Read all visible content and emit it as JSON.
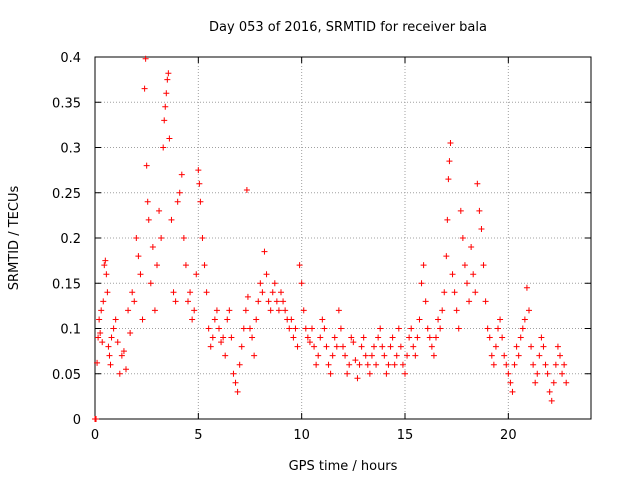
{
  "chart_data": {
    "type": "scatter",
    "title": "Day 053 of 2016, SRMTID for receiver bala",
    "xlabel": "GPS time / hours",
    "ylabel": "SRMTID / TECUs",
    "xlim": [
      0,
      24
    ],
    "ylim": [
      0,
      0.4
    ],
    "x_ticks": [
      0,
      5,
      10,
      15,
      20
    ],
    "y_ticks": [
      0,
      0.05,
      0.1,
      0.15,
      0.2,
      0.25,
      0.3,
      0.35,
      0.4
    ],
    "grid": true,
    "marker": "+",
    "colors": {
      "points": "#ff0000",
      "axes": "#000000",
      "grid": "#a0a0a0"
    },
    "series": [
      {
        "name": "SRMTID",
        "points": [
          [
            0.0,
            0.0
          ],
          [
            0.05,
            0.0
          ],
          [
            0.1,
            0.062
          ],
          [
            0.15,
            0.09
          ],
          [
            0.2,
            0.11
          ],
          [
            0.25,
            0.095
          ],
          [
            0.3,
            0.12
          ],
          [
            0.35,
            0.085
          ],
          [
            0.4,
            0.13
          ],
          [
            0.45,
            0.17
          ],
          [
            0.5,
            0.175
          ],
          [
            0.55,
            0.16
          ],
          [
            0.6,
            0.14
          ],
          [
            0.65,
            0.08
          ],
          [
            0.7,
            0.07
          ],
          [
            0.75,
            0.06
          ],
          [
            0.8,
            0.09
          ],
          [
            0.9,
            0.1
          ],
          [
            1.0,
            0.11
          ],
          [
            1.1,
            0.085
          ],
          [
            1.2,
            0.05
          ],
          [
            1.3,
            0.07
          ],
          [
            1.4,
            0.075
          ],
          [
            1.5,
            0.055
          ],
          [
            1.6,
            0.12
          ],
          [
            1.7,
            0.095
          ],
          [
            1.8,
            0.14
          ],
          [
            1.9,
            0.13
          ],
          [
            2.0,
            0.2
          ],
          [
            2.1,
            0.18
          ],
          [
            2.2,
            0.16
          ],
          [
            2.3,
            0.11
          ],
          [
            2.4,
            0.365
          ],
          [
            2.45,
            0.398
          ],
          [
            2.5,
            0.28
          ],
          [
            2.55,
            0.24
          ],
          [
            2.6,
            0.22
          ],
          [
            2.7,
            0.15
          ],
          [
            2.8,
            0.19
          ],
          [
            2.9,
            0.12
          ],
          [
            3.0,
            0.17
          ],
          [
            3.1,
            0.23
          ],
          [
            3.2,
            0.2
          ],
          [
            3.3,
            0.3
          ],
          [
            3.35,
            0.33
          ],
          [
            3.4,
            0.345
          ],
          [
            3.45,
            0.36
          ],
          [
            3.5,
            0.375
          ],
          [
            3.55,
            0.382
          ],
          [
            3.6,
            0.31
          ],
          [
            3.7,
            0.22
          ],
          [
            3.8,
            0.14
          ],
          [
            3.9,
            0.13
          ],
          [
            4.0,
            0.24
          ],
          [
            4.1,
            0.25
          ],
          [
            4.2,
            0.27
          ],
          [
            4.3,
            0.2
          ],
          [
            4.4,
            0.17
          ],
          [
            4.5,
            0.13
          ],
          [
            4.6,
            0.14
          ],
          [
            4.7,
            0.11
          ],
          [
            4.8,
            0.12
          ],
          [
            4.9,
            0.16
          ],
          [
            5.0,
            0.275
          ],
          [
            5.05,
            0.26
          ],
          [
            5.1,
            0.24
          ],
          [
            5.2,
            0.2
          ],
          [
            5.3,
            0.17
          ],
          [
            5.4,
            0.14
          ],
          [
            5.5,
            0.1
          ],
          [
            5.6,
            0.08
          ],
          [
            5.7,
            0.09
          ],
          [
            5.8,
            0.11
          ],
          [
            5.9,
            0.12
          ],
          [
            6.0,
            0.1
          ],
          [
            6.1,
            0.085
          ],
          [
            6.2,
            0.09
          ],
          [
            6.3,
            0.07
          ],
          [
            6.4,
            0.11
          ],
          [
            6.5,
            0.12
          ],
          [
            6.6,
            0.09
          ],
          [
            6.7,
            0.05
          ],
          [
            6.8,
            0.04
          ],
          [
            6.9,
            0.03
          ],
          [
            7.0,
            0.06
          ],
          [
            7.1,
            0.08
          ],
          [
            7.2,
            0.1
          ],
          [
            7.3,
            0.12
          ],
          [
            7.35,
            0.253
          ],
          [
            7.4,
            0.135
          ],
          [
            7.5,
            0.1
          ],
          [
            7.6,
            0.09
          ],
          [
            7.7,
            0.07
          ],
          [
            7.8,
            0.11
          ],
          [
            7.9,
            0.13
          ],
          [
            8.0,
            0.15
          ],
          [
            8.1,
            0.14
          ],
          [
            8.2,
            0.185
          ],
          [
            8.3,
            0.16
          ],
          [
            8.4,
            0.13
          ],
          [
            8.5,
            0.12
          ],
          [
            8.6,
            0.14
          ],
          [
            8.7,
            0.15
          ],
          [
            8.8,
            0.13
          ],
          [
            8.9,
            0.12
          ],
          [
            9.0,
            0.14
          ],
          [
            9.1,
            0.13
          ],
          [
            9.2,
            0.12
          ],
          [
            9.3,
            0.11
          ],
          [
            9.4,
            0.1
          ],
          [
            9.5,
            0.11
          ],
          [
            9.6,
            0.09
          ],
          [
            9.7,
            0.1
          ],
          [
            9.8,
            0.08
          ],
          [
            9.9,
            0.17
          ],
          [
            10.0,
            0.15
          ],
          [
            10.1,
            0.12
          ],
          [
            10.2,
            0.1
          ],
          [
            10.3,
            0.09
          ],
          [
            10.4,
            0.085
          ],
          [
            10.5,
            0.1
          ],
          [
            10.6,
            0.08
          ],
          [
            10.7,
            0.06
          ],
          [
            10.8,
            0.07
          ],
          [
            10.9,
            0.09
          ],
          [
            11.0,
            0.11
          ],
          [
            11.1,
            0.1
          ],
          [
            11.2,
            0.08
          ],
          [
            11.3,
            0.06
          ],
          [
            11.4,
            0.05
          ],
          [
            11.5,
            0.07
          ],
          [
            11.6,
            0.09
          ],
          [
            11.7,
            0.08
          ],
          [
            11.8,
            0.12
          ],
          [
            11.9,
            0.1
          ],
          [
            12.0,
            0.08
          ],
          [
            12.1,
            0.07
          ],
          [
            12.2,
            0.05
          ],
          [
            12.3,
            0.06
          ],
          [
            12.4,
            0.09
          ],
          [
            12.5,
            0.085
          ],
          [
            12.6,
            0.065
          ],
          [
            12.7,
            0.045
          ],
          [
            12.8,
            0.06
          ],
          [
            12.9,
            0.08
          ],
          [
            13.0,
            0.09
          ],
          [
            13.1,
            0.07
          ],
          [
            13.2,
            0.06
          ],
          [
            13.3,
            0.05
          ],
          [
            13.4,
            0.07
          ],
          [
            13.5,
            0.08
          ],
          [
            13.6,
            0.06
          ],
          [
            13.7,
            0.09
          ],
          [
            13.8,
            0.1
          ],
          [
            13.9,
            0.08
          ],
          [
            14.0,
            0.07
          ],
          [
            14.1,
            0.05
          ],
          [
            14.2,
            0.06
          ],
          [
            14.3,
            0.08
          ],
          [
            14.4,
            0.09
          ],
          [
            14.5,
            0.06
          ],
          [
            14.6,
            0.07
          ],
          [
            14.7,
            0.1
          ],
          [
            14.8,
            0.08
          ],
          [
            14.9,
            0.06
          ],
          [
            15.0,
            0.05
          ],
          [
            15.1,
            0.07
          ],
          [
            15.2,
            0.09
          ],
          [
            15.3,
            0.1
          ],
          [
            15.4,
            0.08
          ],
          [
            15.5,
            0.07
          ],
          [
            15.6,
            0.09
          ],
          [
            15.7,
            0.11
          ],
          [
            15.8,
            0.15
          ],
          [
            15.9,
            0.17
          ],
          [
            16.0,
            0.13
          ],
          [
            16.1,
            0.1
          ],
          [
            16.2,
            0.09
          ],
          [
            16.3,
            0.08
          ],
          [
            16.4,
            0.07
          ],
          [
            16.5,
            0.09
          ],
          [
            16.6,
            0.11
          ],
          [
            16.7,
            0.1
          ],
          [
            16.8,
            0.12
          ],
          [
            16.9,
            0.14
          ],
          [
            17.0,
            0.18
          ],
          [
            17.05,
            0.22
          ],
          [
            17.1,
            0.265
          ],
          [
            17.15,
            0.285
          ],
          [
            17.2,
            0.305
          ],
          [
            17.3,
            0.16
          ],
          [
            17.4,
            0.14
          ],
          [
            17.5,
            0.12
          ],
          [
            17.6,
            0.1
          ],
          [
            17.7,
            0.23
          ],
          [
            17.8,
            0.2
          ],
          [
            17.9,
            0.17
          ],
          [
            18.0,
            0.15
          ],
          [
            18.1,
            0.13
          ],
          [
            18.2,
            0.19
          ],
          [
            18.3,
            0.16
          ],
          [
            18.4,
            0.14
          ],
          [
            18.5,
            0.26
          ],
          [
            18.6,
            0.23
          ],
          [
            18.7,
            0.21
          ],
          [
            18.8,
            0.17
          ],
          [
            18.9,
            0.13
          ],
          [
            19.0,
            0.1
          ],
          [
            19.1,
            0.09
          ],
          [
            19.2,
            0.07
          ],
          [
            19.3,
            0.06
          ],
          [
            19.4,
            0.08
          ],
          [
            19.5,
            0.1
          ],
          [
            19.6,
            0.11
          ],
          [
            19.7,
            0.09
          ],
          [
            19.8,
            0.07
          ],
          [
            19.9,
            0.06
          ],
          [
            20.0,
            0.05
          ],
          [
            20.1,
            0.04
          ],
          [
            20.2,
            0.03
          ],
          [
            20.3,
            0.06
          ],
          [
            20.4,
            0.08
          ],
          [
            20.5,
            0.07
          ],
          [
            20.6,
            0.09
          ],
          [
            20.7,
            0.1
          ],
          [
            20.8,
            0.11
          ],
          [
            20.9,
            0.145
          ],
          [
            21.0,
            0.12
          ],
          [
            21.1,
            0.08
          ],
          [
            21.2,
            0.06
          ],
          [
            21.3,
            0.04
          ],
          [
            21.4,
            0.05
          ],
          [
            21.5,
            0.07
          ],
          [
            21.6,
            0.09
          ],
          [
            21.7,
            0.08
          ],
          [
            21.8,
            0.06
          ],
          [
            21.9,
            0.05
          ],
          [
            22.0,
            0.03
          ],
          [
            22.1,
            0.02
          ],
          [
            22.2,
            0.04
          ],
          [
            22.3,
            0.06
          ],
          [
            22.4,
            0.08
          ],
          [
            22.5,
            0.07
          ],
          [
            22.6,
            0.05
          ],
          [
            22.7,
            0.06
          ],
          [
            22.8,
            0.04
          ]
        ]
      }
    ]
  }
}
